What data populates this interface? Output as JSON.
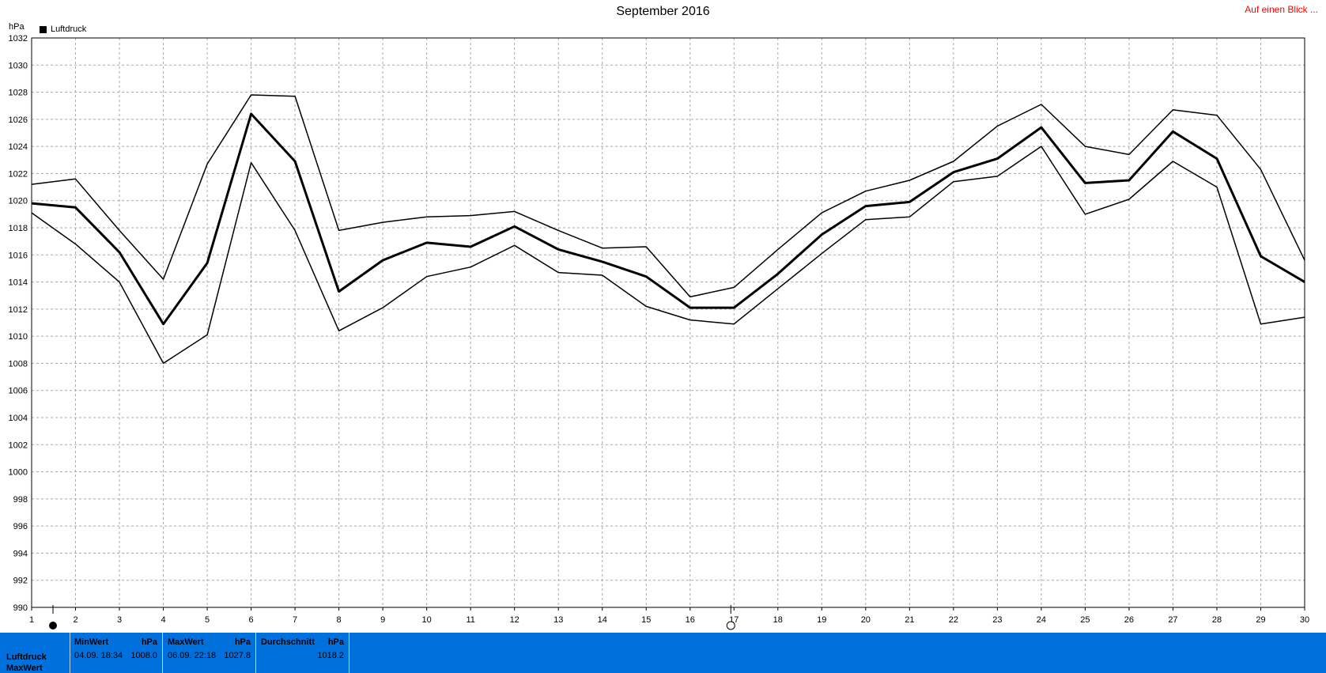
{
  "title": "September 2016",
  "overview_link": "Auf einen Blick ...",
  "legend_label": "Luftdruck",
  "chart_data": {
    "type": "line",
    "ylabel": "hPa",
    "ylim": [
      990,
      1032
    ],
    "yticks": [
      990,
      992,
      994,
      996,
      998,
      1000,
      1002,
      1004,
      1006,
      1008,
      1010,
      1012,
      1014,
      1016,
      1018,
      1020,
      1022,
      1024,
      1026,
      1028,
      1030,
      1032
    ],
    "x": [
      1,
      2,
      3,
      4,
      5,
      6,
      7,
      8,
      9,
      10,
      11,
      12,
      13,
      14,
      15,
      16,
      17,
      18,
      19,
      20,
      21,
      22,
      23,
      24,
      25,
      26,
      27,
      28,
      29,
      30
    ],
    "grid": true,
    "series": [
      {
        "role": "max",
        "values": [
          1021.2,
          1021.6,
          1017.8,
          1014.2,
          1022.7,
          1027.8,
          1027.7,
          1017.8,
          1018.4,
          1018.8,
          1018.9,
          1019.2,
          1017.8,
          1016.5,
          1016.6,
          1012.9,
          1013.6,
          1016.4,
          1019.1,
          1020.7,
          1021.5,
          1022.9,
          1025.5,
          1027.1,
          1024.0,
          1023.4,
          1026.7,
          1026.3,
          1022.3,
          1015.6
        ]
      },
      {
        "role": "mean",
        "values": [
          1019.8,
          1019.5,
          1016.2,
          1010.9,
          1015.4,
          1026.4,
          1022.9,
          1013.3,
          1015.6,
          1016.9,
          1016.6,
          1018.1,
          1016.4,
          1015.5,
          1014.4,
          1012.1,
          1012.1,
          1014.6,
          1017.5,
          1019.6,
          1019.9,
          1022.1,
          1023.1,
          1025.4,
          1021.3,
          1021.5,
          1025.1,
          1023.1,
          1015.9,
          1014.0
        ]
      },
      {
        "role": "min",
        "values": [
          1019.1,
          1016.8,
          1014.0,
          1008.0,
          1010.1,
          1022.8,
          1017.8,
          1010.4,
          1012.1,
          1014.4,
          1015.1,
          1016.7,
          1014.7,
          1014.5,
          1012.2,
          1011.2,
          1010.9,
          1013.5,
          1016.1,
          1018.6,
          1018.8,
          1021.4,
          1021.8,
          1024.0,
          1019.0,
          1020.1,
          1022.9,
          1021.0,
          1010.9,
          1011.4
        ]
      }
    ]
  },
  "stats": {
    "rows": [
      "Luftdruck",
      "MaxWert"
    ],
    "min": {
      "header": "MinWert",
      "unit": "hPa",
      "when": "04.09.  18:34",
      "value": "1008.0"
    },
    "max": {
      "header": "MaxWert",
      "unit": "hPa",
      "when": "06.09.  22:18",
      "value": "1027.8"
    },
    "avg": {
      "header": "Durchschnitt",
      "unit": "hPa",
      "value": "1018.2"
    }
  }
}
